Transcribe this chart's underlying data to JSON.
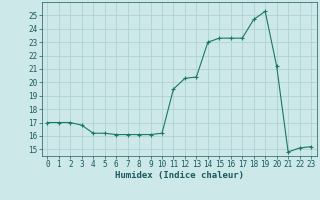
{
  "x": [
    0,
    1,
    2,
    3,
    4,
    5,
    6,
    7,
    8,
    9,
    10,
    11,
    12,
    13,
    14,
    15,
    16,
    17,
    18,
    19,
    20,
    21,
    22,
    23
  ],
  "y": [
    17,
    17,
    17,
    16.8,
    16.2,
    16.2,
    16.1,
    16.1,
    16.1,
    16.1,
    16.2,
    19.5,
    20.3,
    20.4,
    23.0,
    23.3,
    23.3,
    23.3,
    24.7,
    25.3,
    21.2,
    14.8,
    15.1,
    15.2
  ],
  "line_color": "#1a7a5e",
  "marker": "+",
  "marker_color": "#1a7a5e",
  "bg_color": "#cce8e8",
  "grid_color": "#aacece",
  "xlabel": "Humidex (Indice chaleur)",
  "ylim": [
    14.5,
    26
  ],
  "xlim": [
    -0.5,
    23.5
  ],
  "yticks": [
    15,
    16,
    17,
    18,
    19,
    20,
    21,
    22,
    23,
    24,
    25
  ],
  "xticks": [
    0,
    1,
    2,
    3,
    4,
    5,
    6,
    7,
    8,
    9,
    10,
    11,
    12,
    13,
    14,
    15,
    16,
    17,
    18,
    19,
    20,
    21,
    22,
    23
  ],
  "tick_color": "#1a5a5e",
  "label_fontsize": 6.5,
  "tick_fontsize": 5.5,
  "line_width": 0.8,
  "marker_size": 3.5
}
